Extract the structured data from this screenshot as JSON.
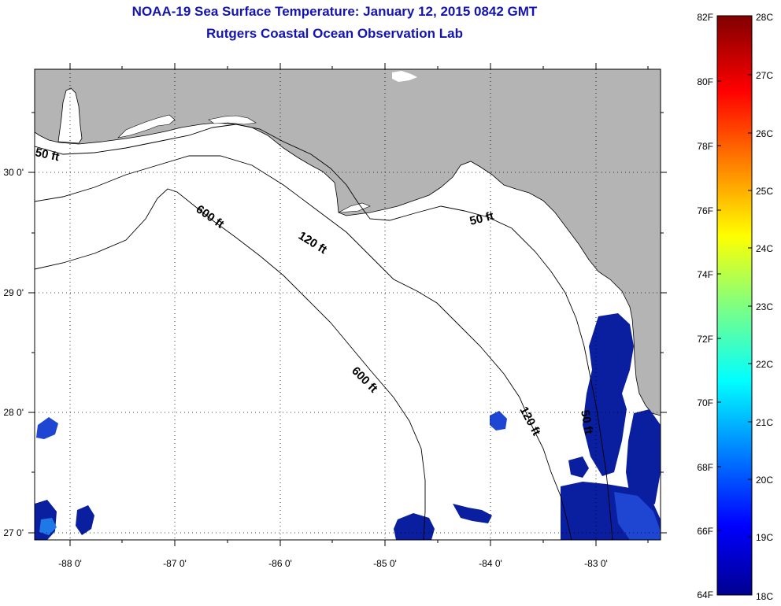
{
  "title": "NOAA-19 Sea Surface Temperature:  January 12, 2015 0842 GMT",
  "subtitle": "Rutgers Coastal Ocean Observation Lab",
  "axes": {
    "lon_labels": [
      "-88 0'",
      "-87 0'",
      "-86 0'",
      "-85 0'",
      "-84 0'",
      "-83 0'"
    ],
    "lat_labels": [
      "30 0'",
      "29 0'",
      "28 0'",
      "27 0'"
    ]
  },
  "contours": {
    "c50_west": "50 ft",
    "c50_east": "50 ft",
    "c50_south": "50 ft",
    "c120_a": "120 ft",
    "c120_b": "120 ft",
    "c600_a": "600 ft",
    "c600_b": "600 ft"
  },
  "colorbar": {
    "f_labels": [
      "82F",
      "80F",
      "78F",
      "76F",
      "74F",
      "72F",
      "70F",
      "68F",
      "66F",
      "64F"
    ],
    "c_labels": [
      "28C",
      "27C",
      "26C",
      "25C",
      "24C",
      "23C",
      "22C",
      "21C",
      "20C",
      "19C",
      "18C"
    ]
  },
  "colors": {
    "land": "#b4b4b4",
    "sst_cold": "#0a1ea0",
    "sst_mid": "#1e46d2",
    "title": "#1414b4"
  }
}
